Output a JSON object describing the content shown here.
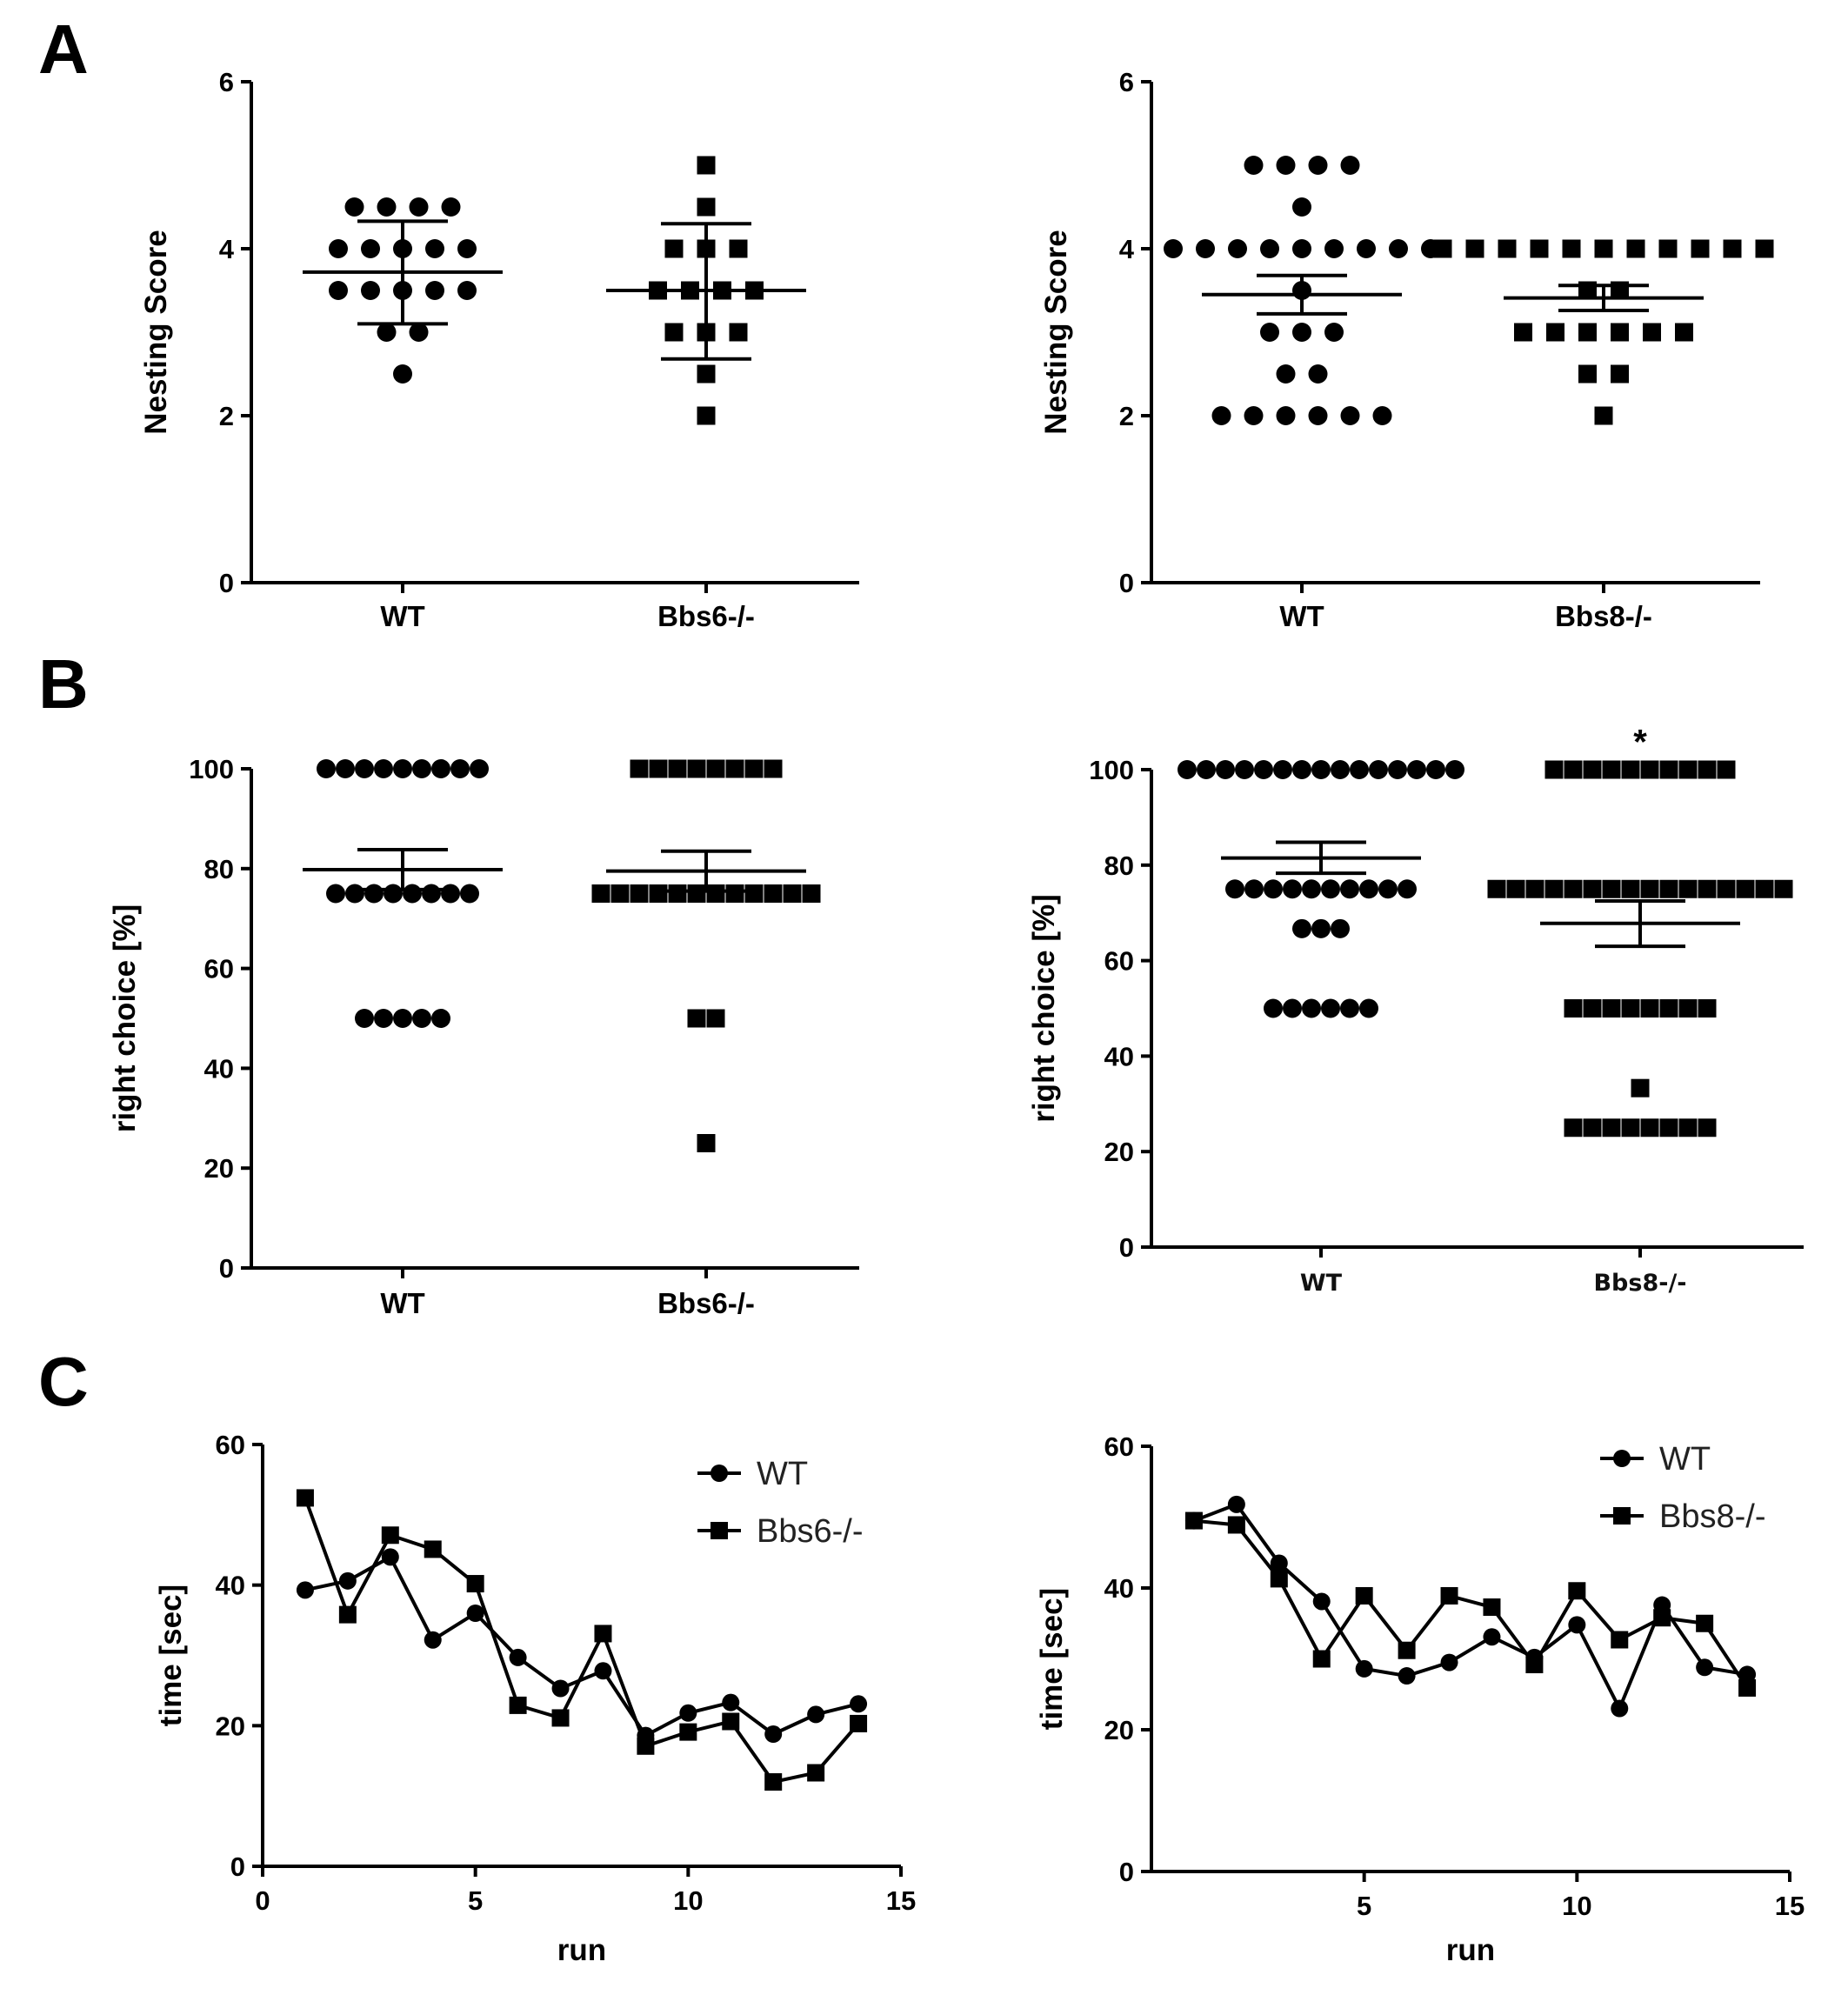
{
  "panel_letters": [
    "A",
    "B",
    "C"
  ],
  "chart_data": [
    {
      "id": "A-left",
      "type": "scatter",
      "panel": "A",
      "ylabel": "Nesting Score",
      "ylim": [
        0,
        6
      ],
      "yticks": [
        0,
        2,
        4,
        6
      ],
      "categories": [
        "WT",
        "Bbs6-/-"
      ],
      "groups": [
        {
          "name": "WT",
          "marker": "circle",
          "rows": [
            {
              "y": 4.5,
              "n": 4
            },
            {
              "y": 4.0,
              "n": 5
            },
            {
              "y": 3.5,
              "n": 5
            },
            {
              "y": 3.0,
              "n": 2
            },
            {
              "y": 2.5,
              "n": 1
            }
          ],
          "mean": 3.72,
          "err_low": 3.1,
          "err_high": 4.33
        },
        {
          "name": "Bbs6-/-",
          "marker": "square",
          "rows": [
            {
              "y": 5.0,
              "n": 1
            },
            {
              "y": 4.5,
              "n": 1
            },
            {
              "y": 4.0,
              "n": 3
            },
            {
              "y": 3.5,
              "n": 4
            },
            {
              "y": 3.0,
              "n": 3
            },
            {
              "y": 2.5,
              "n": 1
            },
            {
              "y": 2.0,
              "n": 1
            }
          ],
          "mean": 3.5,
          "err_low": 2.68,
          "err_high": 4.3
        }
      ]
    },
    {
      "id": "A-right",
      "type": "scatter",
      "panel": "A",
      "ylabel": "Nesting Score",
      "ylim": [
        0,
        6
      ],
      "yticks": [
        0,
        2,
        4,
        6
      ],
      "categories": [
        "WT",
        "Bbs8-/-"
      ],
      "groups": [
        {
          "name": "WT",
          "marker": "circle",
          "rows": [
            {
              "y": 5.0,
              "n": 4
            },
            {
              "y": 4.5,
              "n": 1
            },
            {
              "y": 4.0,
              "n": 9
            },
            {
              "y": 3.5,
              "n": 1
            },
            {
              "y": 3.0,
              "n": 3
            },
            {
              "y": 2.5,
              "n": 2
            },
            {
              "y": 2.0,
              "n": 6
            }
          ],
          "mean": 3.45,
          "err_low": 3.22,
          "err_high": 3.68
        },
        {
          "name": "Bbs8-/-",
          "marker": "square",
          "rows": [
            {
              "y": 4.0,
              "n": 11
            },
            {
              "y": 3.5,
              "n": 2
            },
            {
              "y": 3.0,
              "n": 6
            },
            {
              "y": 2.5,
              "n": 2
            },
            {
              "y": 2.0,
              "n": 1
            }
          ],
          "mean": 3.41,
          "err_low": 3.26,
          "err_high": 3.56
        }
      ]
    },
    {
      "id": "B-left",
      "type": "scatter",
      "panel": "B",
      "ylabel": "right choice [%]",
      "ylim": [
        0,
        100
      ],
      "yticks": [
        0,
        20,
        40,
        60,
        80,
        100
      ],
      "categories": [
        "WT",
        "Bbs6-/-"
      ],
      "groups": [
        {
          "name": "WT",
          "marker": "circle",
          "rows": [
            {
              "y": 100,
              "n": 9
            },
            {
              "y": 75,
              "n": 8
            },
            {
              "y": 50,
              "n": 5
            }
          ],
          "mean": 79.8,
          "err_low": 75.8,
          "err_high": 83.8
        },
        {
          "name": "Bbs6-/-",
          "marker": "square",
          "rows": [
            {
              "y": 100,
              "n": 8
            },
            {
              "y": 75,
              "n": 12
            },
            {
              "y": 50,
              "n": 2
            },
            {
              "y": 25,
              "n": 1
            }
          ],
          "mean": 79.5,
          "err_low": 75.5,
          "err_high": 83.5
        }
      ]
    },
    {
      "id": "B-right",
      "type": "scatter",
      "panel": "B",
      "ylabel": "right choice [%]",
      "ylim": [
        0,
        100
      ],
      "yticks": [
        0,
        20,
        40,
        60,
        80,
        100
      ],
      "categories": [
        "WT",
        "Bbs8-/-"
      ],
      "annotation": {
        "text": "*",
        "category": "Bbs8-/-",
        "y": 107
      },
      "groups": [
        {
          "name": "WT",
          "marker": "circle",
          "rows": [
            {
              "y": 100,
              "n": 15
            },
            {
              "y": 75,
              "n": 10
            },
            {
              "y": 66.7,
              "n": 3
            },
            {
              "y": 50,
              "n": 6
            }
          ],
          "mean": 81.5,
          "err_low": 78.3,
          "err_high": 84.8
        },
        {
          "name": "Bbs8-/-",
          "marker": "square",
          "rows": [
            {
              "y": 100,
              "n": 10
            },
            {
              "y": 75,
              "n": 16
            },
            {
              "y": 50,
              "n": 8
            },
            {
              "y": 33.3,
              "n": 1
            },
            {
              "y": 25,
              "n": 8
            }
          ],
          "mean": 67.8,
          "err_low": 63.0,
          "err_high": 72.5
        }
      ]
    },
    {
      "id": "C-left",
      "type": "line",
      "panel": "C",
      "ylabel": "time [sec]",
      "xlabel": "run",
      "xlim": [
        0,
        15
      ],
      "xticks": [
        0,
        5,
        10,
        15
      ],
      "ylim": [
        0,
        60
      ],
      "yticks": [
        0,
        20,
        40,
        60
      ],
      "legend_position": "top-right",
      "series": [
        {
          "name": "WT",
          "marker": "circle",
          "x": [
            1,
            2,
            3,
            4,
            5,
            6,
            7,
            8,
            9,
            10,
            11,
            12,
            13,
            14
          ],
          "values": [
            39.3,
            40.6,
            44.0,
            32.2,
            36.0,
            29.7,
            25.3,
            27.8,
            18.6,
            21.8,
            23.3,
            18.8,
            21.6,
            23.1
          ]
        },
        {
          "name": "Bbs6-/-",
          "marker": "square",
          "x": [
            1,
            2,
            3,
            4,
            5,
            6,
            7,
            8,
            9,
            10,
            11,
            12,
            13,
            14
          ],
          "values": [
            52.4,
            35.8,
            47.1,
            45.1,
            40.2,
            22.9,
            21.1,
            33.1,
            17.1,
            19.1,
            20.6,
            12.0,
            13.3,
            20.3
          ]
        }
      ]
    },
    {
      "id": "C-right",
      "type": "line",
      "panel": "C",
      "ylabel": "time [sec]",
      "xlabel": "run",
      "xlim": [
        0,
        15
      ],
      "xticks": [
        5,
        10,
        15
      ],
      "ylim": [
        0,
        60
      ],
      "yticks": [
        0,
        20,
        40,
        60
      ],
      "legend_position": "top-right",
      "series": [
        {
          "name": "WT",
          "marker": "circle",
          "x": [
            1,
            2,
            3,
            4,
            5,
            6,
            7,
            8,
            9,
            10,
            11,
            12,
            13,
            14
          ],
          "values": [
            49.5,
            51.8,
            43.5,
            38.1,
            28.6,
            27.6,
            29.5,
            33.1,
            30.2,
            34.8,
            23.0,
            37.6,
            28.8,
            27.8
          ]
        },
        {
          "name": "Bbs8-/-",
          "marker": "square",
          "x": [
            1,
            2,
            3,
            4,
            5,
            6,
            7,
            8,
            9,
            10,
            11,
            12,
            13,
            14
          ],
          "values": [
            49.5,
            48.9,
            41.3,
            30.0,
            38.9,
            31.2,
            38.9,
            37.3,
            29.2,
            39.6,
            32.7,
            35.8,
            35.0,
            25.9
          ]
        }
      ]
    }
  ]
}
